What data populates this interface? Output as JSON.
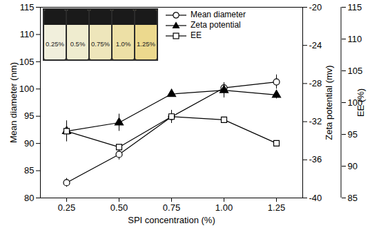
{
  "chart_data": {
    "type": "line",
    "xlabel": "SPI concentration (%)",
    "ylabel": "Mean diameter (nm)",
    "y2label": "Zeta potential (mv)",
    "y3label": "EE (%)",
    "x": [
      0.25,
      0.5,
      0.75,
      1.0,
      1.25
    ],
    "xlim": [
      0.125,
      1.375
    ],
    "xticks": [
      {
        "value": 0.25,
        "label": "0.25"
      },
      {
        "value": 0.5,
        "label": "0.50"
      },
      {
        "value": 0.75,
        "label": "0.75"
      },
      {
        "value": 1.0,
        "label": "1.00"
      },
      {
        "value": 1.25,
        "label": "1.25"
      }
    ],
    "ylim": [
      80,
      115
    ],
    "yticks": [
      80,
      85,
      90,
      95,
      100,
      105,
      110,
      115
    ],
    "y2lim": [
      -40,
      -20
    ],
    "y2ticks": [
      -40,
      -36,
      -32,
      -28,
      -24,
      -20
    ],
    "y3lim": [
      85,
      115
    ],
    "y3ticks": [
      85,
      90,
      95,
      100,
      105,
      110,
      115
    ],
    "grid": false,
    "legend": "top",
    "series": [
      {
        "name": "Mean diameter",
        "color": "#000000",
        "marker": "open-circle",
        "line_style": "solid",
        "axis": "y",
        "values": [
          82.8,
          88.0,
          94.9,
          100.2,
          101.3
        ],
        "errors": [
          0.8,
          1.0,
          1.2,
          0.5,
          1.3
        ]
      },
      {
        "name": "Zeta potential",
        "color": "#000000",
        "marker": "filled-triangle",
        "line_style": "solid",
        "axis": "y2",
        "values": [
          -33.0,
          -32.1,
          -29.1,
          -28.7,
          -29.2
        ],
        "errors": [
          1.1,
          0.9,
          0.3,
          0.8,
          0.4
        ]
      },
      {
        "name": "EE",
        "color": "#000000",
        "marker": "open-square",
        "line_style": "solid",
        "axis": "y3",
        "values": [
          95.5,
          93.0,
          97.8,
          97.3,
          93.6
        ],
        "errors": [
          0.2,
          0.3,
          0.2,
          0.2,
          0.2
        ]
      }
    ],
    "inset_labels": [
      "0.25%",
      "0.5%",
      "0.75%",
      "1.0%",
      "1.25%"
    ]
  }
}
